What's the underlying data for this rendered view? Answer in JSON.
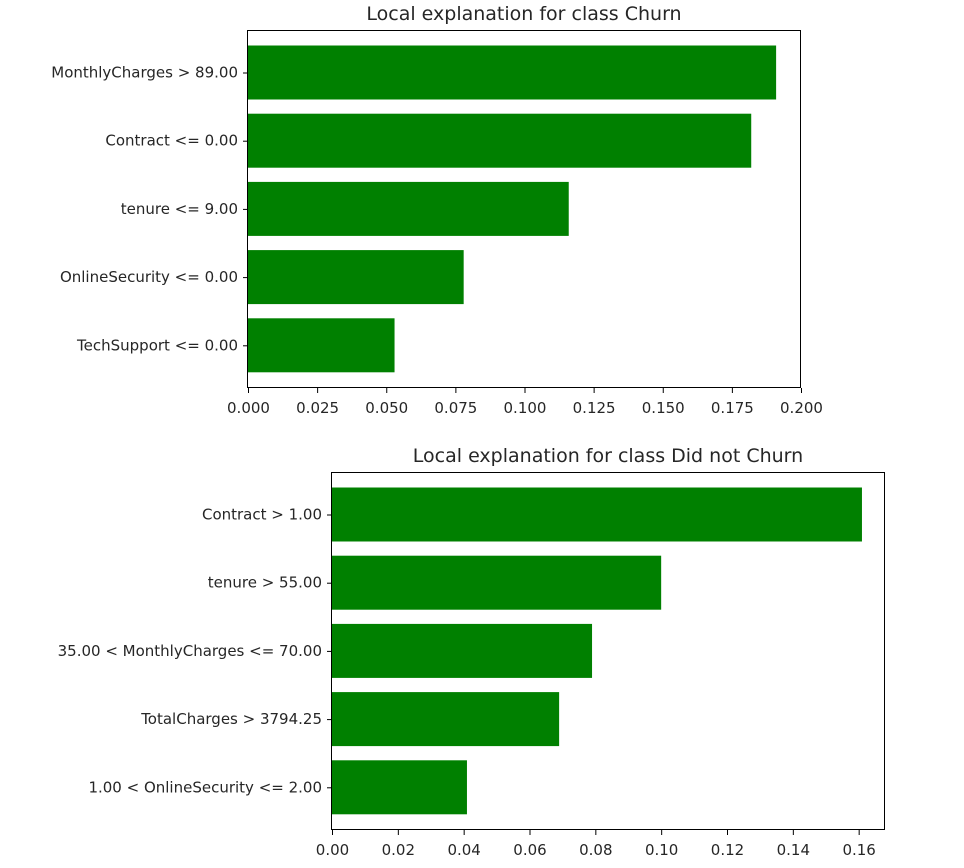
{
  "colors": {
    "bar": "#008000",
    "axis": "#000000",
    "text": "#262626"
  },
  "chart_data": [
    {
      "type": "bar",
      "orientation": "horizontal",
      "title": "Local explanation for class Churn",
      "categories": [
        "MonthlyCharges > 89.00",
        "Contract <= 0.00",
        "tenure <= 9.00",
        "OnlineSecurity <= 0.00",
        "TechSupport <= 0.00"
      ],
      "values": [
        0.191,
        0.182,
        0.116,
        0.078,
        0.053
      ],
      "xlim": [
        0.0,
        0.2
      ],
      "xticks": [
        0.0,
        0.025,
        0.05,
        0.075,
        0.1,
        0.125,
        0.15,
        0.175,
        0.2
      ],
      "xtick_labels": [
        "0.000",
        "0.025",
        "0.050",
        "0.075",
        "0.100",
        "0.125",
        "0.150",
        "0.175",
        "0.200"
      ],
      "xlabel": "",
      "ylabel": "",
      "grid": false
    },
    {
      "type": "bar",
      "orientation": "horizontal",
      "title": "Local explanation for class Did not Churn",
      "categories": [
        "Contract > 1.00",
        "tenure > 55.00",
        "35.00 < MonthlyCharges <= 70.00",
        "TotalCharges > 3794.25",
        "1.00 < OnlineSecurity <= 2.00"
      ],
      "values": [
        0.161,
        0.1,
        0.079,
        0.069,
        0.041
      ],
      "xlim": [
        0.0,
        0.168
      ],
      "xticks": [
        0.0,
        0.02,
        0.04,
        0.06,
        0.08,
        0.1,
        0.12,
        0.14,
        0.16
      ],
      "xtick_labels": [
        "0.00",
        "0.02",
        "0.04",
        "0.06",
        "0.08",
        "0.10",
        "0.12",
        "0.14",
        "0.16"
      ],
      "xlabel": "",
      "ylabel": "",
      "grid": false
    }
  ]
}
